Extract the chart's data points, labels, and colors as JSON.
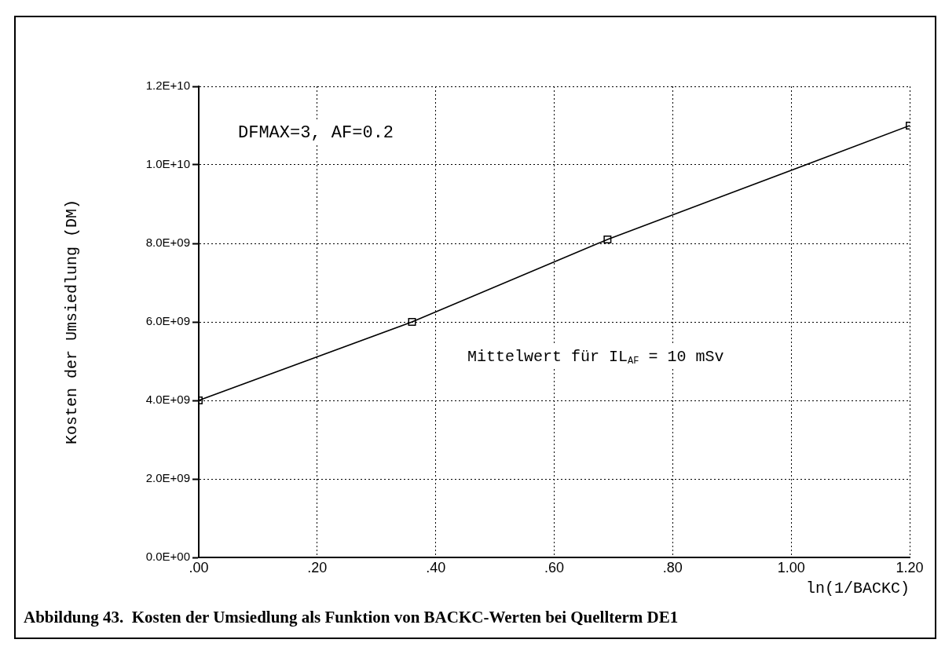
{
  "chart_data": {
    "type": "line",
    "xlabel": "ln(1/BACKC)",
    "ylabel": "Kosten der Umsiedlung (DM)",
    "x": [
      0,
      0.36,
      0.69,
      1.2
    ],
    "series": [
      {
        "color": "#000000",
        "values": [
          4000000000.0,
          6000000000.0,
          8100000000.0,
          11000000000.0
        ]
      }
    ],
    "xlim": [
      0,
      1.2
    ],
    "xticks": [
      {
        "value": 0,
        "label": ".00"
      },
      {
        "value": 0.2,
        "label": ".20"
      },
      {
        "value": 0.4,
        "label": ".40"
      },
      {
        "value": 0.6,
        "label": ".60"
      },
      {
        "value": 0.8,
        "label": ".80"
      },
      {
        "value": 1.0,
        "label": "1.00"
      },
      {
        "value": 1.2,
        "label": "1.20"
      }
    ],
    "ylim": [
      0,
      12000000000.0
    ],
    "yticks": [
      {
        "value": 0,
        "label": "0.0E+00"
      },
      {
        "value": 2000000000.0,
        "label": "2.0E+09"
      },
      {
        "value": 4000000000.0,
        "label": "4.0E+09"
      },
      {
        "value": 6000000000.0,
        "label": "6.0E+09"
      },
      {
        "value": 8000000000.0,
        "label": "8.0E+09"
      },
      {
        "value": 10000000000.0,
        "label": "1.0E+10"
      },
      {
        "value": 12000000000.0,
        "label": "1.2E+10"
      }
    ],
    "grid": true,
    "legend": false,
    "marker": "square",
    "line_style": "solid",
    "annotations": [
      "DFMAX=3, AF=0.2",
      "Mittelwert für IL$_{AF}$ = 10 mSv",
      "Abbildung 43.  Kosten der Umsiedlung als Funktion von BACKC-Werten bei Quellterm DE1"
    ]
  }
}
